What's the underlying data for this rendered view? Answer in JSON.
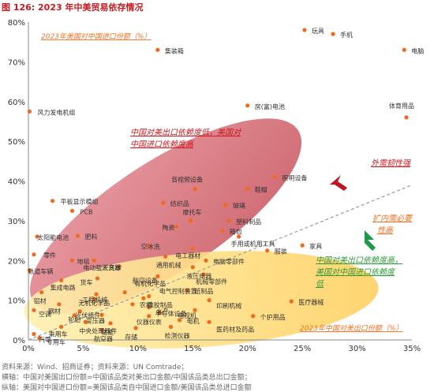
{
  "title": "图 126:  2023 年中美贸易依存情况",
  "chart_data": {
    "type": "scatter",
    "xlim": [
      0,
      0.35
    ],
    "ylim": [
      0,
      0.8
    ],
    "x_ticks": [
      "0%",
      "5%",
      "10%",
      "15%",
      "20%",
      "25%",
      "30%",
      "35%"
    ],
    "y_ticks": [
      "0%",
      "10%",
      "20%",
      "30%",
      "40%",
      "50%",
      "60%",
      "70%",
      "80%"
    ],
    "legend_x": "2023年中国对美出口份额（%）",
    "legend_y": "2023年美国对中国进口份额（%）",
    "colors": {
      "point": "#f06a1e",
      "ellipse_red": "#d8707a",
      "ellipse_yellow": "#ffd770",
      "trend": "#a0a0a0",
      "label": "#333333",
      "annot_red": "#c8191f",
      "annot_green": "#2e9b3a",
      "annot_orange": "#f07020",
      "title": "#c8191f"
    },
    "points": [
      {
        "label": "风力发电机组",
        "x": 0.001,
        "y": 0.575
      },
      {
        "label": "集装箱",
        "x": 0.118,
        "y": 0.73
      },
      {
        "label": "玩具",
        "x": 0.252,
        "y": 0.78
      },
      {
        "label": "手机",
        "x": 0.278,
        "y": 0.77
      },
      {
        "label": "电脑",
        "x": 0.343,
        "y": 0.73
      },
      {
        "label": "房(富)电池",
        "x": 0.2,
        "y": 0.59
      },
      {
        "label": "体育用品",
        "x": 0.345,
        "y": 0.56
      },
      {
        "label": "平板显示模组",
        "x": 0.022,
        "y": 0.35
      },
      {
        "label": "PCB",
        "x": 0.04,
        "y": 0.325
      },
      {
        "label": "音视频设备",
        "x": 0.152,
        "y": 0.38
      },
      {
        "label": "鞋帽",
        "x": 0.2,
        "y": 0.38
      },
      {
        "label": "照明设备",
        "x": 0.225,
        "y": 0.41
      },
      {
        "label": "纺织品",
        "x": 0.123,
        "y": 0.345
      },
      {
        "label": "玻璃",
        "x": 0.18,
        "y": 0.34
      },
      {
        "label": "摩托车",
        "x": 0.148,
        "y": 0.3
      },
      {
        "label": "陶瓷",
        "x": 0.135,
        "y": 0.285
      },
      {
        "label": "塑料制品",
        "x": 0.183,
        "y": 0.3
      },
      {
        "label": "箱包",
        "x": 0.177,
        "y": 0.275
      },
      {
        "label": "手用或机用工具",
        "x": 0.192,
        "y": 0.26
      },
      {
        "label": "家具",
        "x": 0.25,
        "y": 0.238
      },
      {
        "label": "服装",
        "x": 0.218,
        "y": 0.225
      },
      {
        "label": "太阳能电池",
        "x": 0.008,
        "y": 0.26
      },
      {
        "label": "肥料",
        "x": 0.045,
        "y": 0.262
      },
      {
        "label": "空冰洗",
        "x": 0.11,
        "y": 0.237
      },
      {
        "label": "电工器材",
        "x": 0.15,
        "y": 0.23
      },
      {
        "label": "零件",
        "x": 0.005,
        "y": 0.215
      },
      {
        "label": "地毯",
        "x": 0.04,
        "y": 0.2
      },
      {
        "label": "电动载人汽车",
        "x": 0.06,
        "y": 0.2
      },
      {
        "label": "通用机械",
        "x": 0.125,
        "y": 0.21
      },
      {
        "label": "电脑零部件",
        "x": 0.162,
        "y": 0.2
      },
      {
        "label": "逆变器",
        "x": 0.083,
        "y": 0.185
      },
      {
        "label": "液压电器",
        "x": 0.15,
        "y": 0.183
      },
      {
        "label": "轨道车辆",
        "x": 0.001,
        "y": 0.175
      },
      {
        "label": "机械零部件",
        "x": 0.16,
        "y": 0.165
      },
      {
        "label": "航空设备",
        "x": 0.118,
        "y": 0.16
      },
      {
        "label": "集成电路",
        "x": 0.03,
        "y": 0.15
      },
      {
        "label": "货车",
        "x": 0.063,
        "y": 0.155
      },
      {
        "label": "有机化学品",
        "x": 0.088,
        "y": 0.12
      },
      {
        "label": "纸制品",
        "x": 0.145,
        "y": 0.125
      },
      {
        "label": "铝材",
        "x": 0.012,
        "y": 0.12
      },
      {
        "label": "工程机械",
        "x": 0.062,
        "y": 0.115
      },
      {
        "label": "无机化学品",
        "x": 0.06,
        "y": 0.103
      },
      {
        "label": "橡胶制品",
        "x": 0.11,
        "y": 0.11
      },
      {
        "label": "钢材",
        "x": 0.028,
        "y": 0.09
      },
      {
        "label": "印刷机械",
        "x": 0.165,
        "y": 0.1
      },
      {
        "label": "医疗器械",
        "x": 0.24,
        "y": 0.097
      },
      {
        "label": "农机",
        "x": 0.095,
        "y": 0.09
      },
      {
        "label": "水产",
        "x": 0.11,
        "y": 0.082
      },
      {
        "label": "电气控制装置",
        "x": 0.105,
        "y": 0.105
      },
      {
        "label": "空调",
        "x": 0.005,
        "y": 0.075
      },
      {
        "label": "变压器",
        "x": 0.067,
        "y": 0.063
      },
      {
        "label": "光伏组件",
        "x": 0.047,
        "y": 0.072
      },
      {
        "label": "电视机",
        "x": 0.152,
        "y": 0.075
      },
      {
        "label": "个护用品",
        "x": 0.205,
        "y": 0.06
      },
      {
        "label": "轮胎",
        "x": 0.042,
        "y": 0.062
      },
      {
        "label": "仪器仪表",
        "x": 0.11,
        "y": 0.06
      },
      {
        "label": "半导体设备",
        "x": 0.12,
        "y": 0.068
      },
      {
        "label": "电机",
        "x": 0.138,
        "y": 0.05
      },
      {
        "label": "医药材及药品",
        "x": 0.165,
        "y": 0.045
      },
      {
        "label": "中央处理器件",
        "x": 0.052,
        "y": 0.045
      },
      {
        "label": "储能",
        "x": 0.075,
        "y": 0.042
      },
      {
        "label": "乘用车",
        "x": 0.03,
        "y": 0.033
      },
      {
        "label": "存储",
        "x": 0.098,
        "y": 0.03
      },
      {
        "label": "检测仪器",
        "x": 0.13,
        "y": 0.033
      },
      {
        "label": "航空器",
        "x": 0.067,
        "y": 0.025
      },
      {
        "label": "汽零",
        "x": 0.005,
        "y": 0.015
      },
      {
        "label": "专用车",
        "x": 0.01,
        "y": 0.005
      }
    ],
    "annotations": [
      {
        "text": "中国对美出口依赖度低，美国对",
        "color": "red"
      },
      {
        "text": "中国进口依赖度高",
        "color": "red"
      },
      {
        "text": "外需韧性强",
        "color": "red"
      },
      {
        "text": "扩内需必要",
        "color": "orange"
      },
      {
        "text": "性高",
        "color": "orange"
      },
      {
        "text": "中国对美出口依赖度高，",
        "color": "green"
      },
      {
        "text": "美国对中国进口依赖度",
        "color": "green"
      },
      {
        "text": "低",
        "color": "green"
      }
    ]
  },
  "sources": [
    "资料来源：Wind、招商证券；资料来源：UN Comtrade；",
    "横轴：中国对美国出口份额=中国该品类对美出口金额/中国该品类总出口金额；",
    "纵轴：美国对中国进口份额=美国该品类自中国进口金额/美国该品类总进口金额"
  ]
}
